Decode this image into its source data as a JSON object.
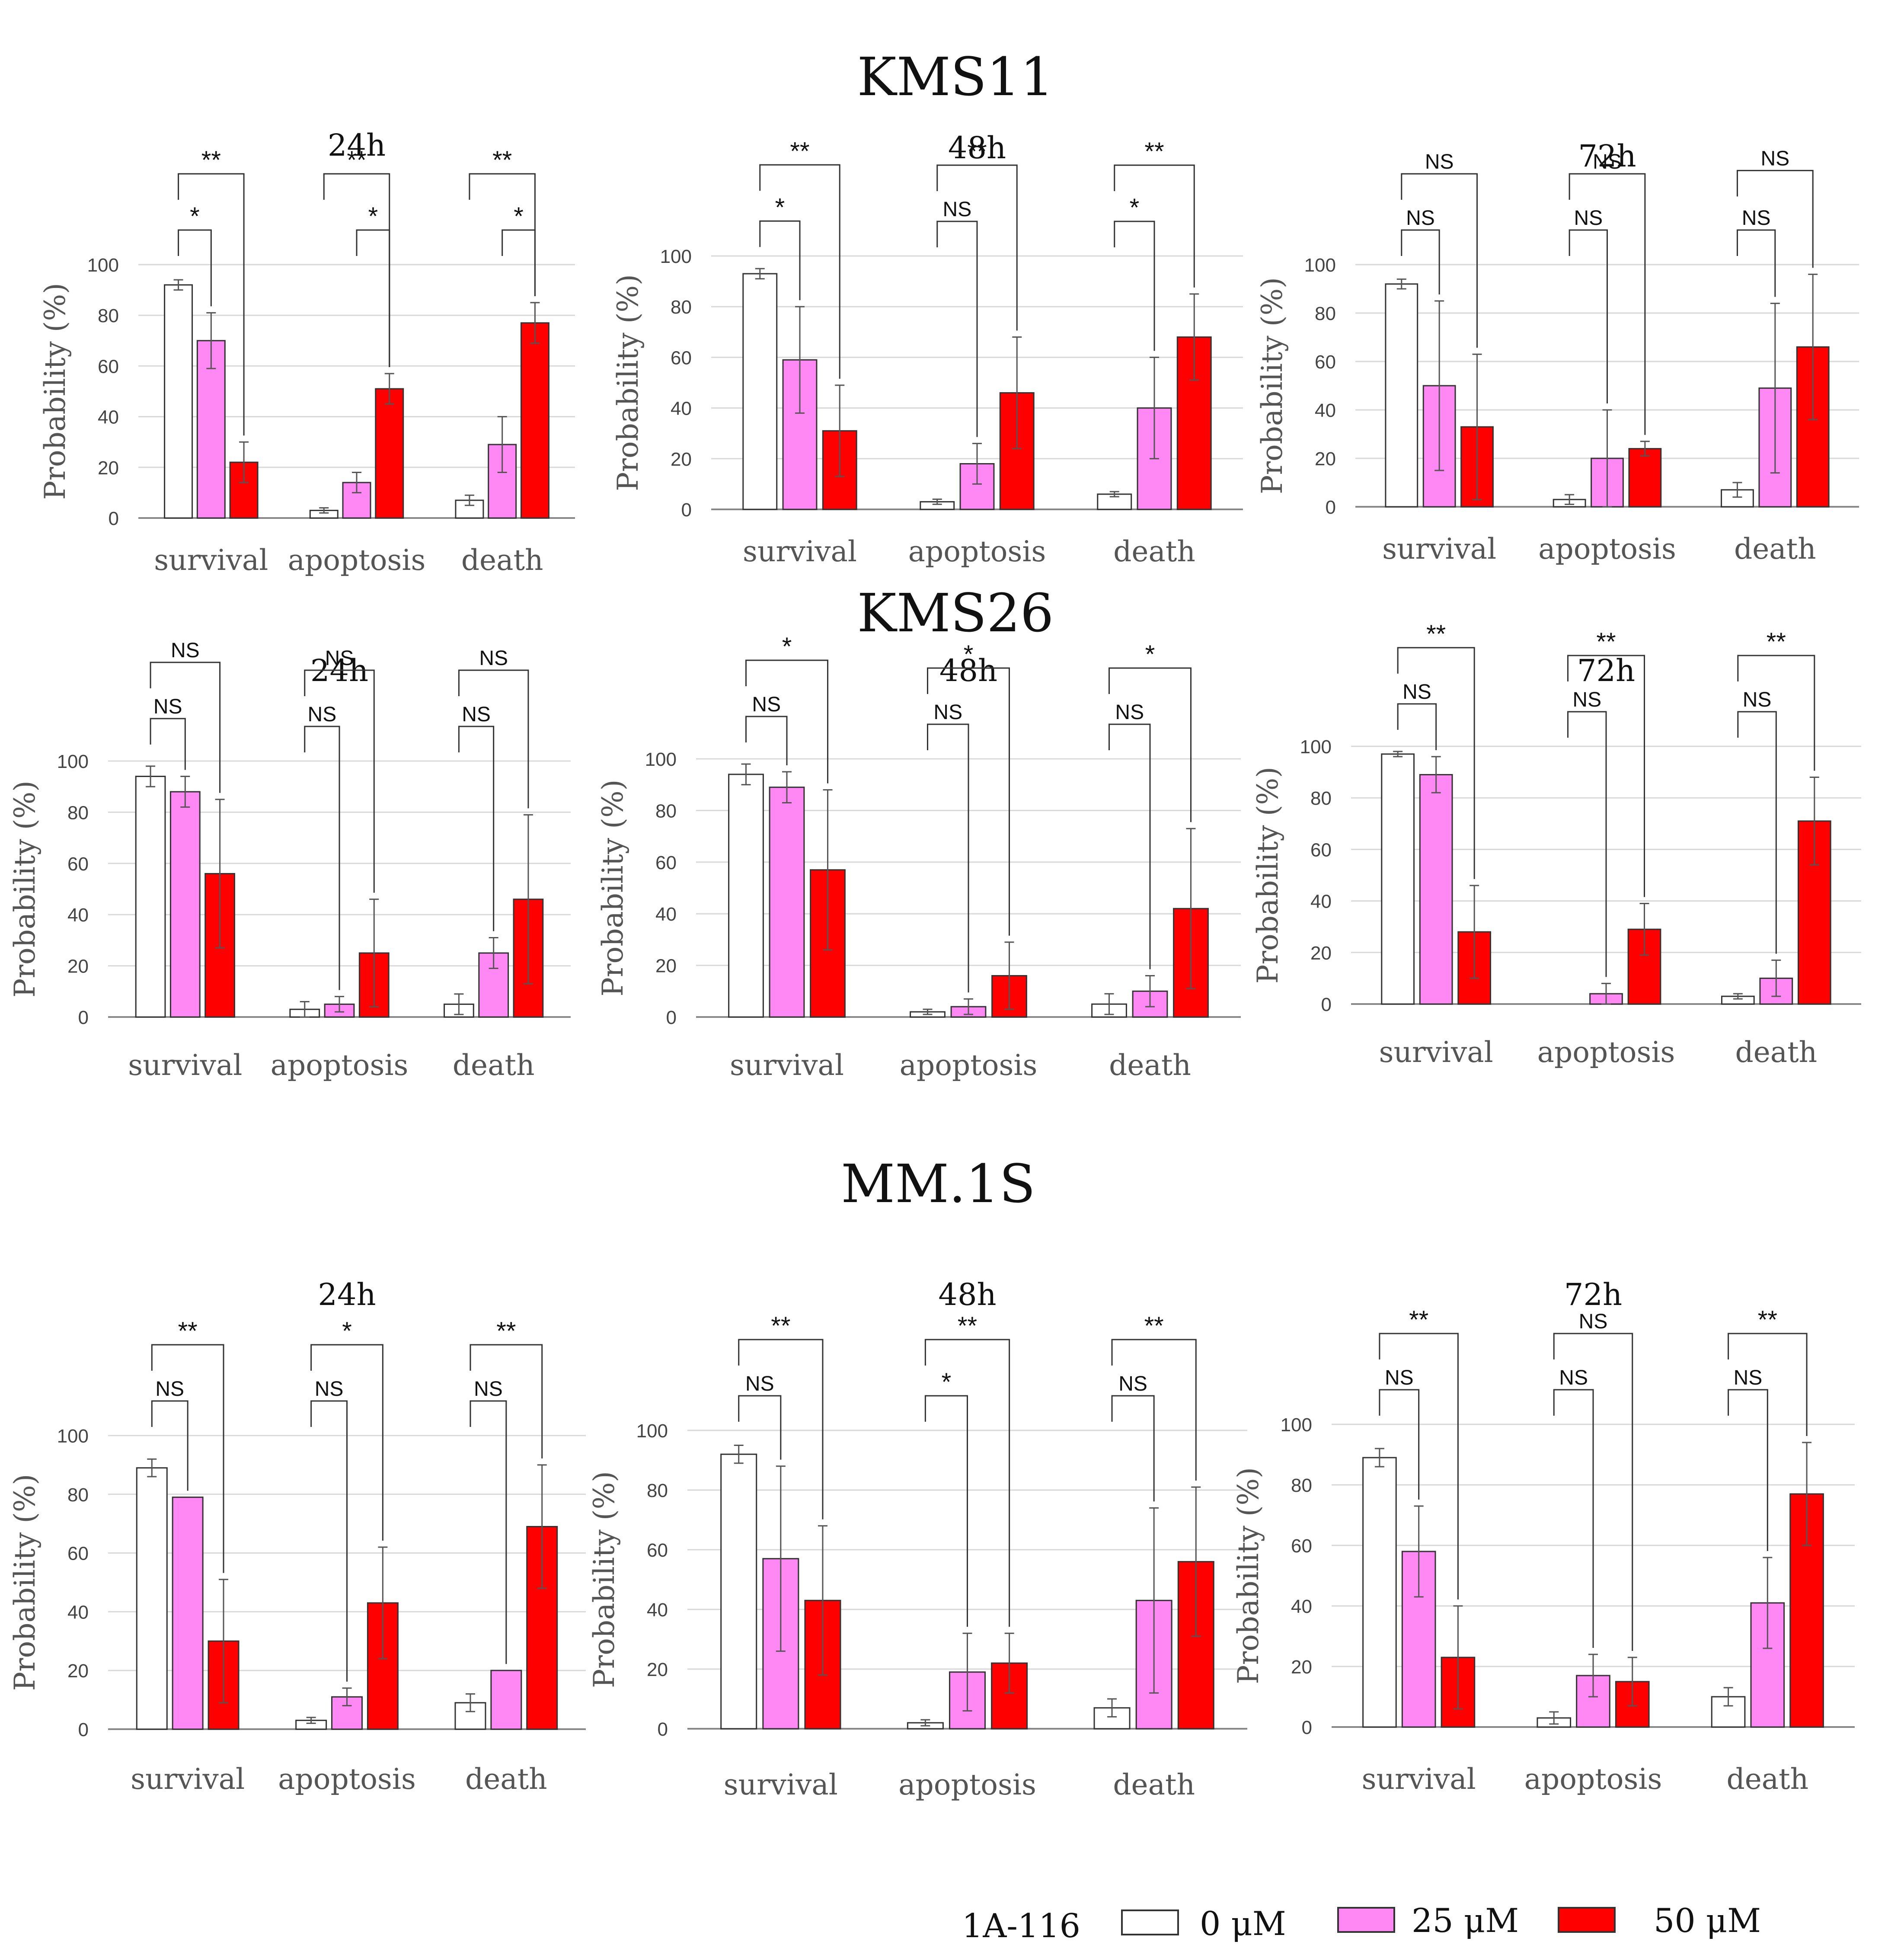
{
  "figure": {
    "ylabel": "Probability (%)",
    "legend": {
      "title": "1A-116",
      "items": [
        {
          "label": "0 μM",
          "color": "#ffffff"
        },
        {
          "label": "25 μM",
          "color": "#ff88f5"
        },
        {
          "label": "50 μM",
          "color": "#ff0000"
        }
      ]
    }
  },
  "chart_data": [
    {
      "type": "bar",
      "cell_line": "KMS11",
      "title": "24h",
      "ylabel": "Probability (%)",
      "ylim": [
        0,
        100
      ],
      "yticks": [
        0,
        20,
        40,
        60,
        80,
        100
      ],
      "grid": true,
      "categories": [
        "survival",
        "apoptosis",
        "death"
      ],
      "series": [
        {
          "name": "0 μM",
          "values": [
            92,
            3,
            7
          ],
          "errors": [
            2,
            1,
            2
          ]
        },
        {
          "name": "25 μM",
          "values": [
            70,
            14,
            29
          ],
          "errors": [
            11,
            4,
            11
          ]
        },
        {
          "name": "50 μM",
          "values": [
            22,
            51,
            77
          ],
          "errors": [
            8,
            6,
            8
          ]
        }
      ],
      "significance": [
        {
          "category": 0,
          "from": 0,
          "to": 1,
          "label": "*"
        },
        {
          "category": 0,
          "from": 0,
          "to": 2,
          "label": "**"
        },
        {
          "category": 1,
          "from": 1,
          "to": 2,
          "label": "*"
        },
        {
          "category": 1,
          "from": 0,
          "to": 2,
          "label": "**"
        },
        {
          "category": 2,
          "from": 1,
          "to": 2,
          "label": "*"
        },
        {
          "category": 2,
          "from": 0,
          "to": 2,
          "label": "**"
        }
      ]
    },
    {
      "type": "bar",
      "cell_line": "KMS11",
      "title": "48h",
      "ylabel": "Probability (%)",
      "ylim": [
        0,
        100
      ],
      "yticks": [
        0,
        20,
        40,
        60,
        80,
        100
      ],
      "grid": true,
      "categories": [
        "survival",
        "apoptosis",
        "death"
      ],
      "series": [
        {
          "name": "0 μM",
          "values": [
            93,
            3,
            6
          ],
          "errors": [
            2,
            1,
            1
          ]
        },
        {
          "name": "25 μM",
          "values": [
            59,
            18,
            40
          ],
          "errors": [
            21,
            8,
            20
          ]
        },
        {
          "name": "50 μM",
          "values": [
            31,
            46,
            68
          ],
          "errors": [
            18,
            22,
            17
          ]
        }
      ],
      "significance": [
        {
          "category": 0,
          "from": 0,
          "to": 1,
          "label": "*"
        },
        {
          "category": 0,
          "from": 0,
          "to": 2,
          "label": "**"
        },
        {
          "category": 1,
          "from": 0,
          "to": 1,
          "label": "NS"
        },
        {
          "category": 1,
          "from": 0,
          "to": 2,
          "label": "**"
        },
        {
          "category": 2,
          "from": 0,
          "to": 1,
          "label": "*"
        },
        {
          "category": 2,
          "from": 0,
          "to": 2,
          "label": "**"
        }
      ]
    },
    {
      "type": "bar",
      "cell_line": "KMS11",
      "title": "72h",
      "ylabel": "Probability (%)",
      "ylim": [
        0,
        100
      ],
      "yticks": [
        0,
        20,
        40,
        60,
        80,
        100
      ],
      "grid": true,
      "categories": [
        "survival",
        "apoptosis",
        "death"
      ],
      "series": [
        {
          "name": "0 μM",
          "values": [
            92,
            3,
            7
          ],
          "errors": [
            2,
            2,
            3
          ]
        },
        {
          "name": "25 μM",
          "values": [
            50,
            20,
            49
          ],
          "errors": [
            35,
            20,
            35
          ]
        },
        {
          "name": "50 μM",
          "values": [
            33,
            24,
            66
          ],
          "errors": [
            30,
            3,
            30
          ]
        }
      ],
      "significance": [
        {
          "category": 0,
          "from": 0,
          "to": 1,
          "label": "NS"
        },
        {
          "category": 0,
          "from": 0,
          "to": 2,
          "label": "NS"
        },
        {
          "category": 1,
          "from": 0,
          "to": 1,
          "label": "NS"
        },
        {
          "category": 1,
          "from": 0,
          "to": 2,
          "label": "NS"
        },
        {
          "category": 2,
          "from": 0,
          "to": 1,
          "label": "NS"
        },
        {
          "category": 2,
          "from": 0,
          "to": 2,
          "label": "NS"
        }
      ]
    },
    {
      "type": "bar",
      "cell_line": "KMS26",
      "title": "24h",
      "ylabel": "Probability (%)",
      "ylim": [
        0,
        100
      ],
      "yticks": [
        0,
        20,
        40,
        60,
        80,
        100
      ],
      "grid": true,
      "categories": [
        "survival",
        "apoptosis",
        "death"
      ],
      "series": [
        {
          "name": "0 μM",
          "values": [
            94,
            3,
            5
          ],
          "errors": [
            4,
            3,
            4
          ]
        },
        {
          "name": "25 μM",
          "values": [
            88,
            5,
            25
          ],
          "errors": [
            6,
            3,
            6
          ]
        },
        {
          "name": "50 μM",
          "values": [
            56,
            25,
            46
          ],
          "errors": [
            29,
            21,
            33
          ]
        }
      ],
      "significance": [
        {
          "category": 0,
          "from": 0,
          "to": 1,
          "label": "NS"
        },
        {
          "category": 0,
          "from": 0,
          "to": 2,
          "label": "NS"
        },
        {
          "category": 1,
          "from": 0,
          "to": 1,
          "label": "NS"
        },
        {
          "category": 1,
          "from": 0,
          "to": 2,
          "label": "NS"
        },
        {
          "category": 2,
          "from": 0,
          "to": 1,
          "label": "NS"
        },
        {
          "category": 2,
          "from": 0,
          "to": 2,
          "label": "NS"
        }
      ]
    },
    {
      "type": "bar",
      "cell_line": "KMS26",
      "title": "48h",
      "ylabel": "Probability (%)",
      "ylim": [
        0,
        100
      ],
      "yticks": [
        0,
        20,
        40,
        60,
        80,
        100
      ],
      "grid": true,
      "categories": [
        "survival",
        "apoptosis",
        "death"
      ],
      "series": [
        {
          "name": "0 μM",
          "values": [
            94,
            2,
            5
          ],
          "errors": [
            4,
            1,
            4
          ]
        },
        {
          "name": "25 μM",
          "values": [
            89,
            4,
            10
          ],
          "errors": [
            6,
            3,
            6
          ]
        },
        {
          "name": "50 μM",
          "values": [
            57,
            16,
            42
          ],
          "errors": [
            31,
            13,
            31
          ]
        }
      ],
      "significance": [
        {
          "category": 0,
          "from": 0,
          "to": 1,
          "label": "NS"
        },
        {
          "category": 0,
          "from": 0,
          "to": 2,
          "label": "*"
        },
        {
          "category": 1,
          "from": 0,
          "to": 1,
          "label": "NS"
        },
        {
          "category": 1,
          "from": 0,
          "to": 2,
          "label": "*"
        },
        {
          "category": 2,
          "from": 0,
          "to": 1,
          "label": "NS"
        },
        {
          "category": 2,
          "from": 0,
          "to": 2,
          "label": "*"
        }
      ]
    },
    {
      "type": "bar",
      "cell_line": "KMS26",
      "title": "72h",
      "ylabel": "Probability (%)",
      "ylim": [
        0,
        100
      ],
      "yticks": [
        0,
        20,
        40,
        60,
        80,
        100
      ],
      "grid": true,
      "categories": [
        "survival",
        "apoptosis",
        "death"
      ],
      "series": [
        {
          "name": "0 μM",
          "values": [
            97,
            0,
            3
          ],
          "errors": [
            1,
            0,
            1
          ]
        },
        {
          "name": "25 μM",
          "values": [
            89,
            4,
            10
          ],
          "errors": [
            7,
            4,
            7
          ]
        },
        {
          "name": "50 μM",
          "values": [
            28,
            29,
            71
          ],
          "errors": [
            18,
            10,
            17
          ]
        }
      ],
      "significance": [
        {
          "category": 0,
          "from": 0,
          "to": 1,
          "label": "NS"
        },
        {
          "category": 0,
          "from": 0,
          "to": 2,
          "label": "**"
        },
        {
          "category": 1,
          "from": 0,
          "to": 1,
          "label": "NS"
        },
        {
          "category": 1,
          "from": 0,
          "to": 2,
          "label": "**"
        },
        {
          "category": 2,
          "from": 0,
          "to": 1,
          "label": "NS"
        },
        {
          "category": 2,
          "from": 0,
          "to": 2,
          "label": "**"
        }
      ]
    },
    {
      "type": "bar",
      "cell_line": "MM.1S",
      "title": "24h",
      "ylabel": "Probability (%)",
      "ylim": [
        0,
        100
      ],
      "yticks": [
        0,
        20,
        40,
        60,
        80,
        100
      ],
      "grid": true,
      "categories": [
        "survival",
        "apoptosis",
        "death"
      ],
      "series": [
        {
          "name": "0 μM",
          "values": [
            89,
            3,
            9
          ],
          "errors": [
            3,
            1,
            3
          ]
        },
        {
          "name": "25 μM",
          "values": [
            79,
            11,
            20
          ],
          "errors": [
            0,
            3,
            0
          ]
        },
        {
          "name": "50 μM",
          "values": [
            30,
            43,
            69
          ],
          "errors": [
            21,
            19,
            21
          ]
        }
      ],
      "significance": [
        {
          "category": 0,
          "from": 0,
          "to": 1,
          "label": "NS"
        },
        {
          "category": 0,
          "from": 0,
          "to": 2,
          "label": "**"
        },
        {
          "category": 1,
          "from": 0,
          "to": 1,
          "label": "NS"
        },
        {
          "category": 1,
          "from": 0,
          "to": 2,
          "label": "*"
        },
        {
          "category": 2,
          "from": 0,
          "to": 1,
          "label": "NS"
        },
        {
          "category": 2,
          "from": 0,
          "to": 2,
          "label": "**"
        }
      ]
    },
    {
      "type": "bar",
      "cell_line": "MM.1S",
      "title": "48h",
      "ylabel": "Probability (%)",
      "ylim": [
        0,
        100
      ],
      "yticks": [
        0,
        20,
        40,
        60,
        80,
        100
      ],
      "grid": true,
      "categories": [
        "survival",
        "apoptosis",
        "death"
      ],
      "series": [
        {
          "name": "0 μM",
          "values": [
            92,
            2,
            7
          ],
          "errors": [
            3,
            1,
            3
          ]
        },
        {
          "name": "25 μM",
          "values": [
            57,
            19,
            43
          ],
          "errors": [
            31,
            13,
            31
          ]
        },
        {
          "name": "50 μM",
          "values": [
            43,
            22,
            56
          ],
          "errors": [
            25,
            10,
            25
          ]
        }
      ],
      "significance": [
        {
          "category": 0,
          "from": 0,
          "to": 1,
          "label": "NS"
        },
        {
          "category": 0,
          "from": 0,
          "to": 2,
          "label": "**"
        },
        {
          "category": 1,
          "from": 0,
          "to": 1,
          "label": "*"
        },
        {
          "category": 1,
          "from": 0,
          "to": 2,
          "label": "**"
        },
        {
          "category": 2,
          "from": 0,
          "to": 1,
          "label": "NS"
        },
        {
          "category": 2,
          "from": 0,
          "to": 2,
          "label": "**"
        }
      ]
    },
    {
      "type": "bar",
      "cell_line": "MM.1S",
      "title": "72h",
      "ylabel": "Probability (%)",
      "ylim": [
        0,
        100
      ],
      "yticks": [
        0,
        20,
        40,
        60,
        80,
        100
      ],
      "grid": true,
      "categories": [
        "survival",
        "apoptosis",
        "death"
      ],
      "series": [
        {
          "name": "0 μM",
          "values": [
            89,
            3,
            10
          ],
          "errors": [
            3,
            2,
            3
          ]
        },
        {
          "name": "25 μM",
          "values": [
            58,
            17,
            41
          ],
          "errors": [
            15,
            7,
            15
          ]
        },
        {
          "name": "50 μM",
          "values": [
            23,
            15,
            77
          ],
          "errors": [
            17,
            8,
            17
          ]
        }
      ],
      "significance": [
        {
          "category": 0,
          "from": 0,
          "to": 1,
          "label": "NS"
        },
        {
          "category": 0,
          "from": 0,
          "to": 2,
          "label": "**"
        },
        {
          "category": 1,
          "from": 0,
          "to": 1,
          "label": "NS"
        },
        {
          "category": 1,
          "from": 0,
          "to": 2,
          "label": "NS"
        },
        {
          "category": 2,
          "from": 0,
          "to": 1,
          "label": "NS"
        },
        {
          "category": 2,
          "from": 0,
          "to": 2,
          "label": "**"
        }
      ]
    }
  ]
}
